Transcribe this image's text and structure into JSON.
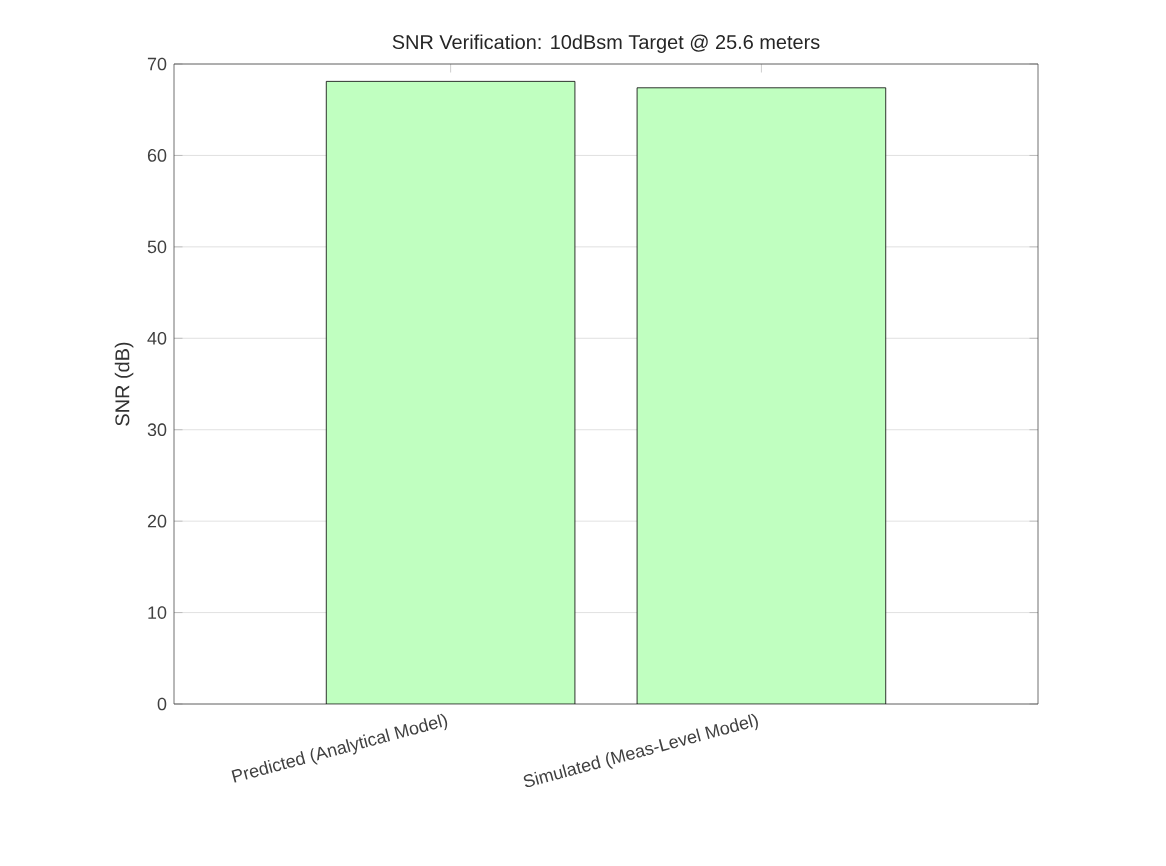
{
  "chart_data": {
    "type": "bar",
    "title": "SNR Verification: 10dBsm Target @ 25.6 meters",
    "ylabel": "SNR (dB)",
    "categories": [
      "Predicted (Analytical Model)",
      "Simulated (Meas-Level Model)"
    ],
    "values": [
      68.1,
      67.4
    ],
    "color": "#c0ffc0",
    "ylim": [
      0,
      70
    ],
    "yticks": [
      0,
      10,
      20,
      30,
      40,
      50,
      60,
      70
    ],
    "grid": "y"
  }
}
